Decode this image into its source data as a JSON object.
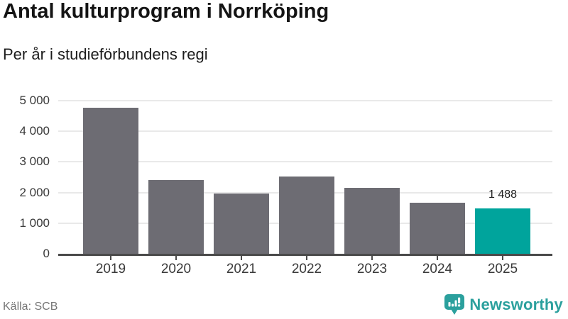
{
  "header": {
    "title": "Antal kulturprogram i Norrköping",
    "subtitle": "Per år i studieförbundens regi"
  },
  "footer": {
    "source": "Källa: SCB",
    "logo_text": "Newsworthy",
    "logo_icon": "newsworthy-badge-icon"
  },
  "colors": {
    "bar": "#6d6c73",
    "highlight": "#00a49c",
    "grid": "#e9e9e9",
    "axis": "#4a4a4a",
    "tick_label": "#3a3a3a",
    "value_label": "#1f1f1f",
    "source_text": "#767676",
    "logo": "#2ba09d"
  },
  "chart_data": {
    "type": "bar",
    "title": "Antal kulturprogram i Norrköping",
    "subtitle": "Per år i studieförbundens regi",
    "categories": [
      "2019",
      "2020",
      "2021",
      "2022",
      "2023",
      "2024",
      "2025"
    ],
    "values": [
      4760,
      2400,
      1960,
      2530,
      2150,
      1660,
      1488
    ],
    "highlight_category": "2025",
    "data_labels": [
      {
        "category": "2025",
        "text": "1 488"
      }
    ],
    "xlabel": "",
    "ylabel": "",
    "ylim": [
      0,
      5000
    ],
    "yticks": [
      {
        "value": 0,
        "label": "0"
      },
      {
        "value": 1000,
        "label": "1 000"
      },
      {
        "value": 2000,
        "label": "2 000"
      },
      {
        "value": 3000,
        "label": "3 000"
      },
      {
        "value": 4000,
        "label": "4 000"
      },
      {
        "value": 5000,
        "label": "5 000"
      }
    ],
    "grid": true,
    "legend": "none",
    "source": "Källa: SCB"
  }
}
